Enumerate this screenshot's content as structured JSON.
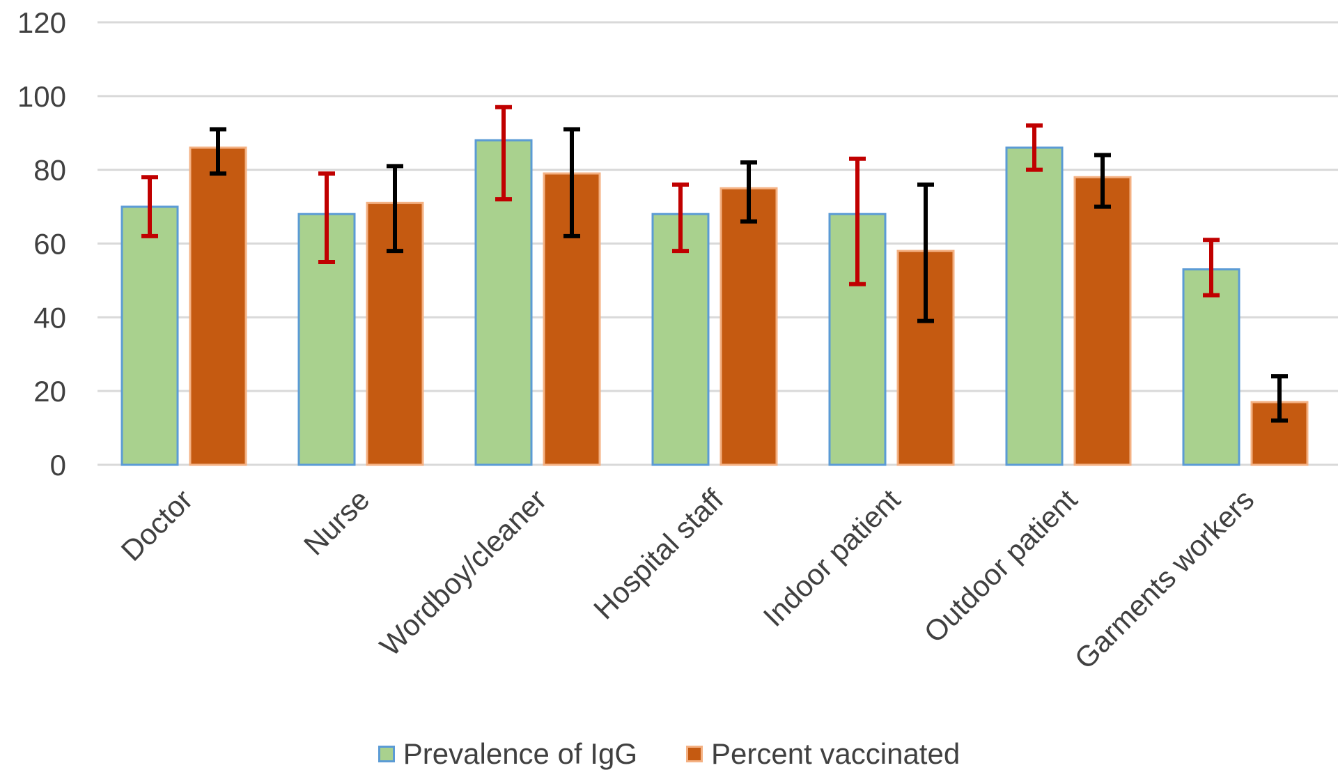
{
  "chart_data": {
    "type": "bar",
    "title": "",
    "xlabel": "",
    "ylabel": "",
    "ylim": [
      0,
      120
    ],
    "yticks": [
      0,
      20,
      40,
      60,
      80,
      100,
      120
    ],
    "grid": true,
    "legend_position": "bottom",
    "categories": [
      "Doctor",
      "Nurse",
      "Wordboy/cleaner",
      "Hospital staff",
      "Indoor patient",
      "Outdoor patient",
      "Garments workers"
    ],
    "series": [
      {
        "name": "Prevalence of IgG",
        "values": [
          70,
          68,
          88,
          68,
          68,
          86,
          53
        ],
        "error_low": [
          62,
          55,
          72,
          58,
          49,
          80,
          46
        ],
        "error_high": [
          78,
          79,
          97,
          76,
          83,
          92,
          61
        ],
        "color": "#a9d18e",
        "border_color": "#5b9bd5",
        "error_bar_color": "#c00000"
      },
      {
        "name": "Percent vaccinated",
        "values": [
          86,
          71,
          79,
          75,
          58,
          78,
          17
        ],
        "error_low": [
          79,
          58,
          62,
          66,
          39,
          70,
          12
        ],
        "error_high": [
          91,
          81,
          91,
          82,
          76,
          84,
          24
        ],
        "color": "#c55a11",
        "border_color": "#f4b183",
        "error_bar_color": "#000000"
      }
    ]
  }
}
